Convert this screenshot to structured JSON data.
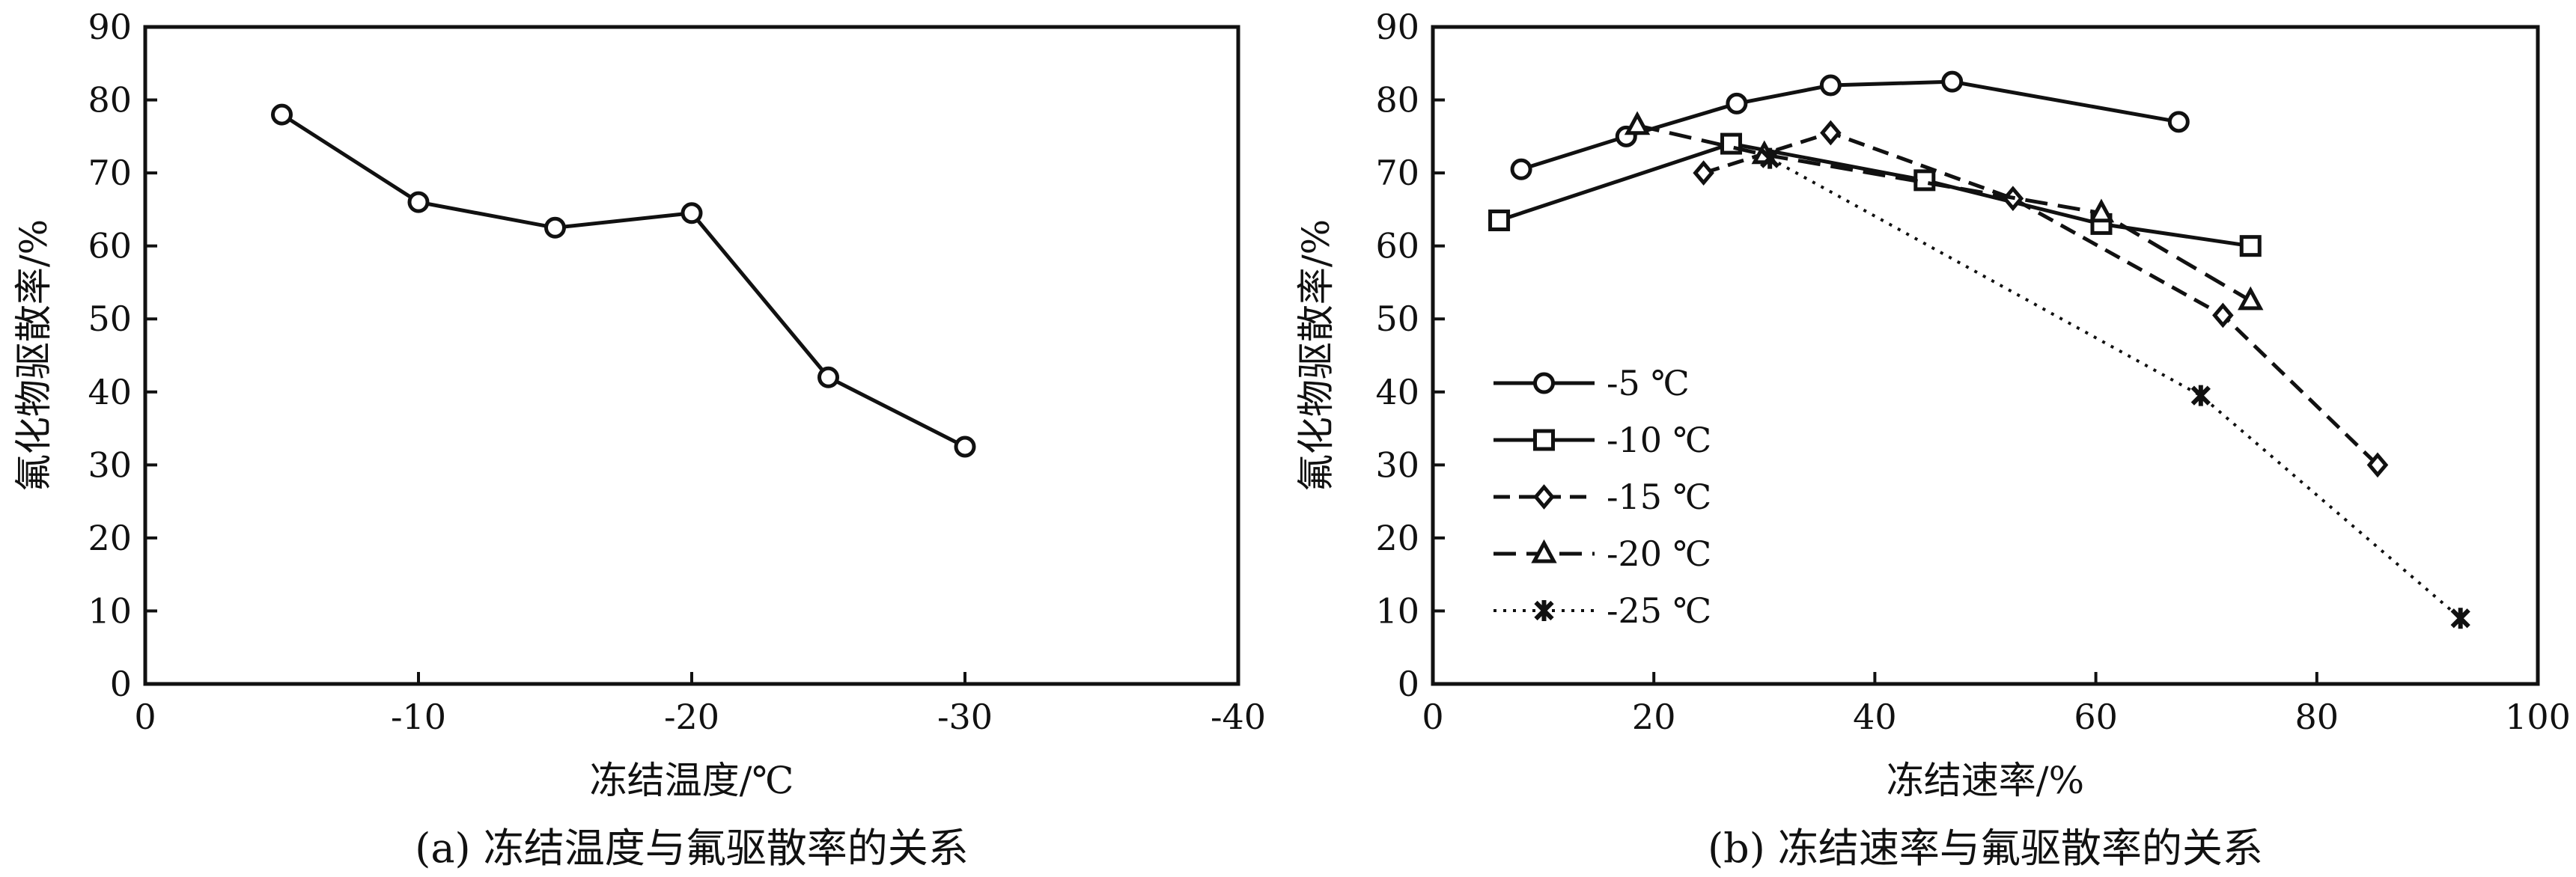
{
  "chart_data": [
    {
      "type": "line",
      "xlabel": "冻结温度/℃",
      "ylabel": "氟化物驱散率/%",
      "caption": "(a) 冻结温度与氟驱散率的关系",
      "xlim": [
        0,
        -40
      ],
      "ylim": [
        0,
        90
      ],
      "xticks": [
        0,
        -10,
        -20,
        -30,
        -40
      ],
      "xtick_labels": [
        "0",
        "-10",
        "-20",
        "-30",
        "-40"
      ],
      "yticks": [
        0,
        10,
        20,
        30,
        40,
        50,
        60,
        70,
        80,
        90
      ],
      "ytick_labels": [
        "0",
        "10",
        "20",
        "30",
        "40",
        "50",
        "60",
        "70",
        "80",
        "90"
      ],
      "grid": false,
      "series": [
        {
          "marker": "circle",
          "dash": "solid",
          "x": [
            -5,
            -10,
            -15,
            -20,
            -25,
            -30
          ],
          "y": [
            78,
            66,
            62.5,
            64.5,
            42,
            32.5
          ]
        }
      ]
    },
    {
      "type": "line",
      "xlabel": "冻结速率/%",
      "ylabel": "氟化物驱散率/%",
      "caption": "(b) 冻结速率与氟驱散率的关系",
      "xlim": [
        0,
        100
      ],
      "ylim": [
        0,
        90
      ],
      "xticks": [
        0,
        20,
        40,
        60,
        80,
        100
      ],
      "xtick_labels": [
        "0",
        "20",
        "40",
        "60",
        "80",
        "100"
      ],
      "yticks": [
        0,
        10,
        20,
        30,
        40,
        50,
        60,
        70,
        80,
        90
      ],
      "ytick_labels": [
        "0",
        "10",
        "20",
        "30",
        "40",
        "50",
        "60",
        "70",
        "80",
        "90"
      ],
      "grid": false,
      "legend_position": "left-middle",
      "series": [
        {
          "name": "-5 ℃",
          "marker": "circle",
          "dash": "solid",
          "x": [
            8,
            17.5,
            27.5,
            36,
            47,
            67.5
          ],
          "y": [
            70.5,
            75,
            79.5,
            82,
            82.5,
            77
          ]
        },
        {
          "name": "-10 ℃",
          "marker": "square",
          "dash": "solid",
          "x": [
            6,
            27,
            44.5,
            60.5,
            74
          ],
          "y": [
            63.5,
            74,
            69,
            63,
            60
          ]
        },
        {
          "name": "-15 ℃",
          "marker": "diamond",
          "dash": "dashed",
          "x": [
            24.5,
            36,
            52.5,
            71.5,
            85.5
          ],
          "y": [
            70,
            75.5,
            66.5,
            50.5,
            30
          ]
        },
        {
          "name": "-20 ℃",
          "marker": "triangle",
          "dash": "longdash",
          "x": [
            18.5,
            30,
            60.5,
            74
          ],
          "y": [
            76.5,
            72.5,
            64.5,
            52.5
          ]
        },
        {
          "name": "-25 ℃",
          "marker": "star",
          "dash": "dotted",
          "x": [
            30.5,
            69.5,
            93
          ],
          "y": [
            72,
            39.5,
            9
          ]
        }
      ]
    }
  ]
}
